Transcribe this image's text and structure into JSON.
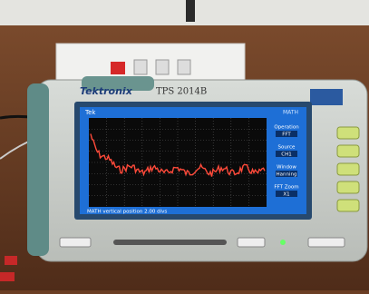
{
  "header": {
    "brand": "Tektronix",
    "model": "TPS 2014B"
  },
  "screen": {
    "status": "Tek",
    "channel": "MATH",
    "menu": [
      {
        "label": "Operation",
        "value": "FFT"
      },
      {
        "label": "Source",
        "value": "CH1"
      },
      {
        "label": "Window",
        "value": "Hanning"
      },
      {
        "label": "FFT Zoom",
        "value": "X1"
      }
    ],
    "message": "MATH vertical position 2.00 divs"
  }
}
